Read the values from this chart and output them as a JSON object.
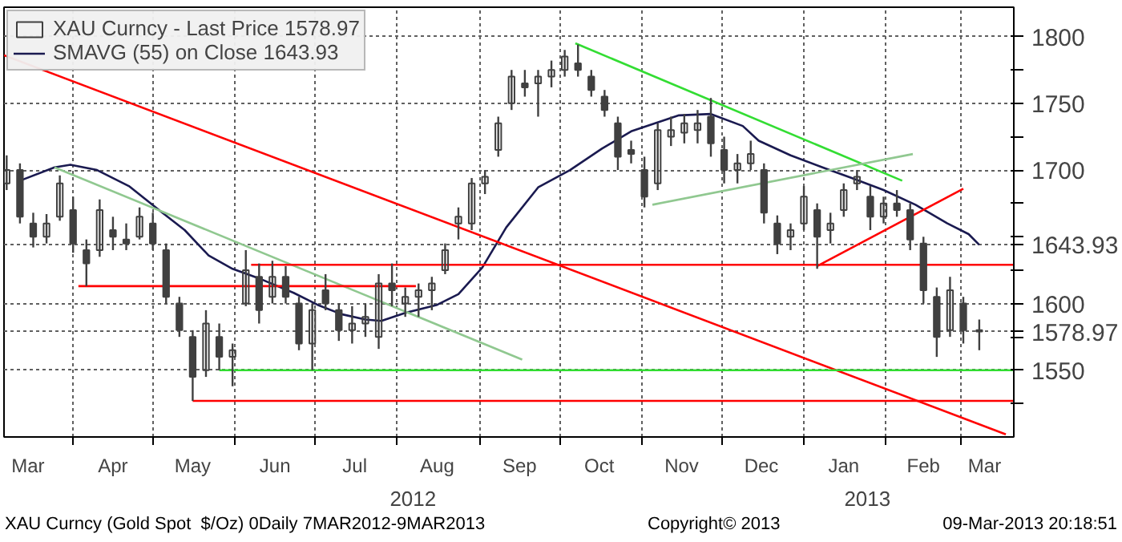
{
  "chart_data": {
    "type": "candlestick",
    "xlim": [
      "2012-03-06",
      "2013-03-21"
    ],
    "ylim": [
      1500,
      1822
    ],
    "xticks": [
      {
        "value": "2012-03-15",
        "label": "Mar"
      },
      {
        "value": "2012-04-01",
        "label": null
      },
      {
        "value": "2012-04-16",
        "label": "Apr"
      },
      {
        "value": "2012-05-01",
        "label": null
      },
      {
        "value": "2012-05-16",
        "label": "May"
      },
      {
        "value": "2012-06-01",
        "label": null
      },
      {
        "value": "2012-06-16",
        "label": "Jun"
      },
      {
        "value": "2012-07-01",
        "label": null
      },
      {
        "value": "2012-07-16",
        "label": "Jul"
      },
      {
        "value": "2012-08-01",
        "label": null
      },
      {
        "value": "2012-08-16",
        "label": "Aug"
      },
      {
        "value": "2012-09-01",
        "label": null
      },
      {
        "value": "2012-09-16",
        "label": "Sep"
      },
      {
        "value": "2012-10-01",
        "label": null
      },
      {
        "value": "2012-10-16",
        "label": "Oct"
      },
      {
        "value": "2012-11-01",
        "label": null
      },
      {
        "value": "2012-11-16",
        "label": "Nov"
      },
      {
        "value": "2012-12-01",
        "label": null
      },
      {
        "value": "2012-12-16",
        "label": "Dec"
      },
      {
        "value": "2013-01-01",
        "label": null
      },
      {
        "value": "2013-01-16",
        "label": "Jan"
      },
      {
        "value": "2013-02-01",
        "label": null
      },
      {
        "value": "2013-02-15",
        "label": "Feb"
      },
      {
        "value": "2013-03-01",
        "label": null
      },
      {
        "value": "2013-03-10",
        "label": "Mar"
      }
    ],
    "yticks": [
      {
        "value": 1525,
        "label": null
      },
      1550,
      {
        "value": 1575,
        "label": null
      },
      1578.97,
      1600,
      {
        "value": 1625,
        "label": null
      },
      1643.93,
      {
        "value": 1650,
        "label": null
      },
      {
        "value": 1675,
        "label": null
      },
      1700,
      {
        "value": 1725,
        "label": null
      },
      1750,
      {
        "value": 1775,
        "label": null
      },
      1800
    ],
    "grid": true,
    "legend": "top left",
    "series": [
      {
        "name": "XAU Curncy - Last Price 1578.97",
        "type": "candlestick",
        "color": "#404040",
        "x": [
          "2012-03-07",
          "2012-03-12",
          "2012-03-17",
          "2012-03-22",
          "2012-03-27",
          "2012-04-01",
          "2012-04-06",
          "2012-04-11",
          "2012-04-16",
          "2012-04-21",
          "2012-04-26",
          "2012-05-01",
          "2012-05-06",
          "2012-05-11",
          "2012-05-16",
          "2012-05-21",
          "2012-05-26",
          "2012-05-31",
          "2012-06-05",
          "2012-06-10",
          "2012-06-15",
          "2012-06-20",
          "2012-06-25",
          "2012-06-30",
          "2012-07-05",
          "2012-07-10",
          "2012-07-15",
          "2012-07-20",
          "2012-07-25",
          "2012-07-30",
          "2012-08-04",
          "2012-08-09",
          "2012-08-14",
          "2012-08-19",
          "2012-08-24",
          "2012-08-29",
          "2012-09-03",
          "2012-09-08",
          "2012-09-13",
          "2012-09-18",
          "2012-09-23",
          "2012-09-28",
          "2012-10-03",
          "2012-10-08",
          "2012-10-13",
          "2012-10-18",
          "2012-10-23",
          "2012-10-28",
          "2012-11-02",
          "2012-11-07",
          "2012-11-12",
          "2012-11-17",
          "2012-11-22",
          "2012-11-27",
          "2012-12-02",
          "2012-12-07",
          "2012-12-12",
          "2012-12-17",
          "2012-12-22",
          "2012-12-27",
          "2013-01-01",
          "2013-01-06",
          "2013-01-11",
          "2013-01-16",
          "2013-01-21",
          "2013-01-26",
          "2013-01-31",
          "2013-02-05",
          "2013-02-10",
          "2013-02-15",
          "2013-02-20",
          "2013-02-25",
          "2013-03-02",
          "2013-03-08"
        ],
        "ohlc": [
          [
            1690,
            1711,
            1685,
            1700
          ],
          [
            1700,
            1705,
            1660,
            1665
          ],
          [
            1660,
            1668,
            1642,
            1650
          ],
          [
            1650,
            1667,
            1645,
            1660
          ],
          [
            1665,
            1696,
            1662,
            1690
          ],
          [
            1670,
            1680,
            1638,
            1645
          ],
          [
            1640,
            1648,
            1613,
            1630
          ],
          [
            1640,
            1678,
            1635,
            1670
          ],
          [
            1655,
            1665,
            1640,
            1650
          ],
          [
            1648,
            1660,
            1640,
            1645
          ],
          [
            1650,
            1672,
            1648,
            1665
          ],
          [
            1660,
            1668,
            1640,
            1645
          ],
          [
            1640,
            1645,
            1600,
            1605
          ],
          [
            1600,
            1605,
            1575,
            1580
          ],
          [
            1575,
            1580,
            1527,
            1545
          ],
          [
            1550,
            1595,
            1545,
            1585
          ],
          [
            1575,
            1585,
            1550,
            1560
          ],
          [
            1560,
            1570,
            1538,
            1565
          ],
          [
            1600,
            1640,
            1598,
            1625
          ],
          [
            1620,
            1630,
            1585,
            1595
          ],
          [
            1605,
            1632,
            1600,
            1620
          ],
          [
            1620,
            1628,
            1600,
            1605
          ],
          [
            1600,
            1605,
            1565,
            1570
          ],
          [
            1570,
            1600,
            1550,
            1595
          ],
          [
            1610,
            1622,
            1595,
            1600
          ],
          [
            1595,
            1600,
            1572,
            1580
          ],
          [
            1580,
            1598,
            1570,
            1585
          ],
          [
            1585,
            1600,
            1575,
            1590
          ],
          [
            1575,
            1622,
            1566,
            1615
          ],
          [
            1615,
            1630,
            1598,
            1610
          ],
          [
            1600,
            1612,
            1590,
            1605
          ],
          [
            1605,
            1615,
            1590,
            1610
          ],
          [
            1610,
            1620,
            1595,
            1615
          ],
          [
            1625,
            1645,
            1622,
            1640
          ],
          [
            1660,
            1672,
            1648,
            1665
          ],
          [
            1660,
            1694,
            1655,
            1690
          ],
          [
            1690,
            1700,
            1682,
            1695
          ],
          [
            1715,
            1740,
            1710,
            1735
          ],
          [
            1750,
            1775,
            1745,
            1770
          ],
          [
            1765,
            1775,
            1755,
            1762
          ],
          [
            1765,
            1775,
            1740,
            1770
          ],
          [
            1770,
            1782,
            1762,
            1775
          ],
          [
            1775,
            1790,
            1770,
            1785
          ],
          [
            1780,
            1794,
            1770,
            1775
          ],
          [
            1770,
            1775,
            1755,
            1760
          ],
          [
            1755,
            1760,
            1740,
            1745
          ],
          [
            1735,
            1740,
            1700,
            1710
          ],
          [
            1715,
            1722,
            1705,
            1712
          ],
          [
            1700,
            1710,
            1672,
            1680
          ],
          [
            1690,
            1735,
            1685,
            1730
          ],
          [
            1725,
            1740,
            1718,
            1730
          ],
          [
            1728,
            1742,
            1720,
            1735
          ],
          [
            1730,
            1745,
            1720,
            1735
          ],
          [
            1740,
            1754,
            1710,
            1720
          ],
          [
            1715,
            1725,
            1690,
            1700
          ],
          [
            1700,
            1712,
            1690,
            1705
          ],
          [
            1705,
            1722,
            1700,
            1712
          ],
          [
            1700,
            1705,
            1660,
            1668
          ],
          [
            1660,
            1666,
            1637,
            1645
          ],
          [
            1650,
            1660,
            1640,
            1655
          ],
          [
            1660,
            1688,
            1655,
            1680
          ],
          [
            1670,
            1675,
            1626,
            1650
          ],
          [
            1655,
            1668,
            1645,
            1660
          ],
          [
            1670,
            1690,
            1665,
            1685
          ],
          [
            1690,
            1700,
            1685,
            1695
          ],
          [
            1680,
            1688,
            1655,
            1665
          ],
          [
            1665,
            1680,
            1660,
            1675
          ],
          [
            1675,
            1685,
            1665,
            1670
          ],
          [
            1670,
            1675,
            1640,
            1648
          ],
          [
            1645,
            1650,
            1600,
            1610
          ],
          [
            1605,
            1612,
            1560,
            1575
          ],
          [
            1580,
            1620,
            1575,
            1610
          ],
          [
            1600,
            1605,
            1570,
            1580
          ],
          [
            1580,
            1588,
            1565,
            1578.97
          ]
        ]
      },
      {
        "name": "SMAVG (55) on Close 1643.93",
        "type": "line",
        "color": "#1a1a50",
        "x": [
          "2012-03-12",
          "2012-03-25",
          "2012-03-31",
          "2012-04-10",
          "2012-04-22",
          "2012-05-04",
          "2012-05-13",
          "2012-05-22",
          "2012-05-31",
          "2012-06-11",
          "2012-06-23",
          "2012-07-02",
          "2012-07-11",
          "2012-07-20",
          "2012-07-26",
          "2012-08-04",
          "2012-08-16",
          "2012-08-24",
          "2012-09-02",
          "2012-09-11",
          "2012-09-23",
          "2012-10-05",
          "2012-10-17",
          "2012-10-28",
          "2012-11-06",
          "2012-11-15",
          "2012-11-27",
          "2012-12-09",
          "2012-12-15",
          "2012-12-27",
          "2013-01-08",
          "2013-01-19",
          "2013-01-31",
          "2013-02-12",
          "2013-02-24",
          "2013-03-04",
          "2013-03-08"
        ],
        "values": [
          1692,
          1702,
          1704,
          1700,
          1688,
          1669,
          1655,
          1636,
          1626,
          1618,
          1608,
          1599,
          1592,
          1588,
          1587,
          1593,
          1599,
          1607,
          1627,
          1657,
          1687,
          1700,
          1716,
          1729,
          1735,
          1741,
          1742,
          1733,
          1722,
          1711,
          1702,
          1694,
          1685,
          1674,
          1660,
          1652,
          1643.93
        ]
      },
      {
        "type": "line",
        "color": "#ff0000",
        "x": [
          "2012-03-06",
          "2013-03-18"
        ],
        "values": [
          1786,
          1502
        ]
      },
      {
        "type": "line",
        "color": "#90c890",
        "x": [
          "2012-03-25",
          "2012-09-17"
        ],
        "values": [
          1702,
          1558
        ]
      },
      {
        "type": "line",
        "color": "#ff0000",
        "x": [
          "2012-04-03",
          "2012-08-08"
        ],
        "values": [
          1613,
          1613
        ]
      },
      {
        "type": "line",
        "color": "#ff0000",
        "x": [
          "2012-06-07",
          "2013-03-21"
        ],
        "values": [
          1629,
          1629
        ]
      },
      {
        "type": "line",
        "color": "#33dd33",
        "x": [
          "2012-05-26",
          "2013-03-21"
        ],
        "values": [
          1550,
          1550
        ]
      },
      {
        "type": "line",
        "color": "#ff0000",
        "x": [
          "2012-05-16",
          "2013-03-21"
        ],
        "values": [
          1527,
          1527
        ]
      },
      {
        "type": "line",
        "color": "#33dd33",
        "x": [
          "2012-10-07",
          "2013-02-07"
        ],
        "values": [
          1795,
          1692
        ]
      },
      {
        "type": "line",
        "color": "#90c890",
        "x": [
          "2012-11-05",
          "2013-02-11"
        ],
        "values": [
          1674,
          1712
        ]
      },
      {
        "type": "line",
        "color": "#ff0000",
        "x": [
          "2013-01-06",
          "2013-03-02"
        ],
        "values": [
          1628,
          1686
        ]
      }
    ],
    "annotations": [
      "2012",
      "2013",
      "XAU Curncy (Gold Spot  $/Oz) 0Daily 7MAR2012-9MAR2013",
      "Copyright© 2013",
      "09-Mar-2013 20:18:51"
    ]
  }
}
